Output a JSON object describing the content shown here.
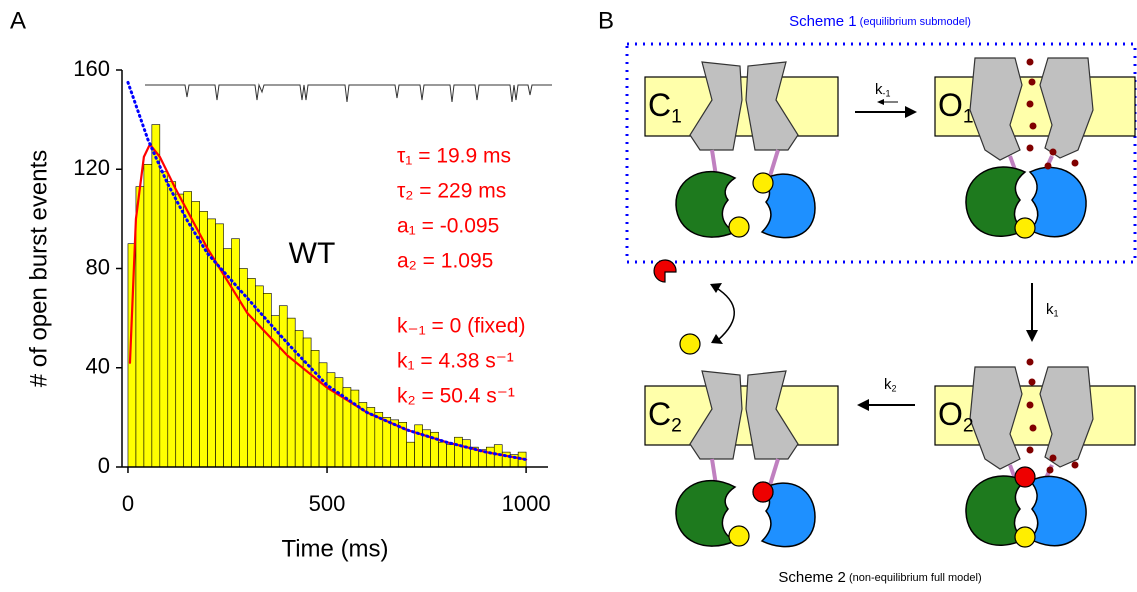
{
  "panel_labels": [
    "A",
    "B"
  ],
  "chart_data": {
    "type": "histogram",
    "xlabel": "Time (ms)",
    "ylabel": "# of open burst events",
    "bins": [
      0,
      20,
      40,
      60,
      80,
      100,
      120,
      140,
      160,
      180,
      200,
      220,
      240,
      260,
      280,
      300,
      320,
      340,
      360,
      380,
      400,
      420,
      440,
      460,
      480,
      500,
      520,
      540,
      560,
      580,
      600,
      620,
      640,
      660,
      680,
      700,
      720,
      740,
      760,
      780,
      800,
      820,
      840,
      860,
      880,
      900,
      920,
      940,
      960,
      980,
      1000
    ],
    "values": [
      90,
      113,
      122,
      138,
      119,
      115,
      110,
      111,
      107,
      103,
      100,
      98,
      88,
      92,
      80,
      76,
      73,
      70,
      61,
      65,
      60,
      55,
      52,
      47,
      42,
      38,
      36,
      32,
      31,
      26,
      24,
      22,
      20,
      19,
      18,
      10,
      17,
      15,
      14,
      10,
      9,
      12,
      11,
      8,
      7,
      8,
      9,
      6,
      5,
      6
    ],
    "color": "#ffff00",
    "edgecolor": "#000000",
    "xlim": [
      -15,
      1055
    ],
    "ylim": [
      0,
      160
    ],
    "xticks": [
      0,
      500,
      1000
    ],
    "yticks": [
      0,
      40,
      80,
      120,
      160
    ],
    "series": [
      {
        "color": "#ff0000",
        "style": "solid",
        "x": [
          5,
          20,
          40,
          55,
          80,
          120,
          200,
          300,
          400,
          500,
          600,
          700,
          800,
          900,
          1000
        ],
        "values": [
          42,
          100,
          125,
          130,
          125,
          112,
          88,
          62,
          45,
          32,
          22,
          15,
          10,
          6,
          3
        ]
      },
      {
        "color": "#0000ff",
        "style": "dotted",
        "x": [
          0,
          50,
          100,
          150,
          200,
          300,
          400,
          500,
          600,
          700,
          800,
          900,
          1000
        ],
        "values": [
          155,
          132,
          114,
          99,
          86,
          68,
          50,
          33,
          22,
          15,
          10,
          6,
          3
        ]
      }
    ],
    "label": "WT",
    "fit_params": [
      "τ₁ = 19.9 ms",
      "τ₂ = 229 ms",
      "a₁ = -0.095",
      "a₂ = 1.095"
    ],
    "rate_params": [
      "k₋₁ = 0 (fixed)",
      "k₁ = 4.38 s⁻¹",
      "k₂ = 50.4 s⁻¹"
    ],
    "annotation_color": "#ff0000"
  },
  "diagram": {
    "scheme1": {
      "title": "Scheme 1",
      "subtitle": "(equilibrium submodel)"
    },
    "scheme2": {
      "title": "Scheme 2",
      "subtitle": "(non-equilibrium full model)"
    },
    "states": [
      {
        "main": "C",
        "sub": "1"
      },
      {
        "main": "O",
        "sub": "1"
      },
      {
        "main": "C",
        "sub": "2"
      },
      {
        "main": "O",
        "sub": "2"
      }
    ],
    "rates": [
      {
        "main": "k",
        "sub": "-1"
      },
      {
        "main": "k",
        "sub": "1"
      },
      {
        "main": "k",
        "sub": "2"
      }
    ]
  }
}
